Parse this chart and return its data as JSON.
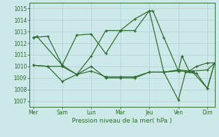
{
  "xlabel": "Pression niveau de la mer( hPa )",
  "ylim": [
    1006.5,
    1015.5
  ],
  "yticks": [
    1007,
    1008,
    1009,
    1010,
    1011,
    1012,
    1013,
    1014,
    1015
  ],
  "xtick_labels": [
    "Mer",
    "Sam",
    "Lun",
    "Mar",
    "Jeu",
    "Ven",
    "Dim"
  ],
  "xtick_positions": [
    0,
    8,
    16,
    24,
    32,
    40,
    48
  ],
  "xlim": [
    -1,
    50
  ],
  "bg_color": "#cce8e8",
  "line_color": "#2d6a2d",
  "grid_color": "#aacfcf",
  "line1_x": [
    0,
    1,
    8,
    12,
    16,
    20,
    24,
    28,
    32,
    33,
    36,
    40,
    41,
    43,
    45,
    48,
    50
  ],
  "line1_y": [
    1012.5,
    1012.6,
    1010.1,
    1012.7,
    1012.8,
    1011.1,
    1013.1,
    1014.1,
    1014.8,
    1014.8,
    1012.5,
    1009.6,
    1010.9,
    1009.6,
    1010.0,
    1010.3,
    1010.3
  ],
  "line2_x": [
    0,
    4,
    8,
    12,
    16,
    20,
    24,
    28,
    32,
    36,
    40,
    44,
    48,
    50
  ],
  "line2_y": [
    1012.5,
    1012.6,
    1010.1,
    1009.3,
    1010.9,
    1013.1,
    1013.1,
    1013.1,
    1014.8,
    1009.5,
    1009.7,
    1009.6,
    1009.7,
    1010.3
  ],
  "line3_x": [
    0,
    4,
    8,
    12,
    16,
    20,
    24,
    28,
    32,
    36,
    40,
    42,
    45,
    48,
    50
  ],
  "line3_y": [
    1010.1,
    1010.0,
    1008.7,
    1009.3,
    1010.0,
    1009.0,
    1009.0,
    1009.0,
    1009.5,
    1009.5,
    1007.1,
    1009.5,
    1009.4,
    1008.1,
    1010.3
  ],
  "line4_x": [
    0,
    4,
    8,
    12,
    16,
    20,
    24,
    28,
    32,
    36,
    40,
    44,
    48,
    50
  ],
  "line4_y": [
    1010.1,
    1010.0,
    1010.0,
    1009.3,
    1009.6,
    1009.1,
    1009.1,
    1009.1,
    1009.5,
    1009.5,
    1009.6,
    1009.5,
    1008.1,
    1010.3
  ]
}
